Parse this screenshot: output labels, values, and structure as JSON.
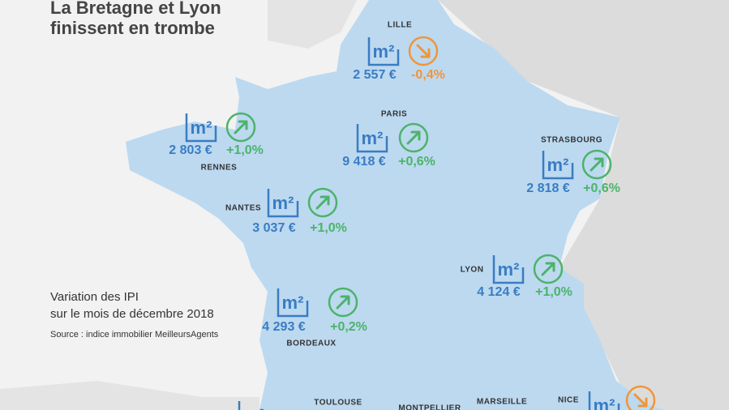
{
  "header": {
    "title_lines": [
      "La Bretagne et Lyon",
      "finissent en trombe"
    ]
  },
  "legend": {
    "lines": [
      "Variation des IPI",
      "sur le mois de décembre 2018"
    ],
    "source": "Source : indice immobilier MeilleursAgents"
  },
  "icon_label": "m²",
  "cities": [
    {
      "name": "LILLE",
      "price": {
        "value": 2557,
        "label": "2 557 €"
      },
      "change": {
        "value": -0.4,
        "label": "-0,4%"
      },
      "color": "#f0953a"
    },
    {
      "name": "PARIS",
      "price": {
        "value": 9418,
        "label": "9 418 €"
      },
      "change": {
        "value": 0.6,
        "label": "+0,6%"
      },
      "color": "#4cb36a"
    },
    {
      "name": "STRASBOURG",
      "price": {
        "value": 2818,
        "label": "2 818 €"
      },
      "change": {
        "value": 0.6,
        "label": "+0,6%"
      },
      "color": "#4cb36a"
    },
    {
      "name": "RENNES",
      "price": {
        "value": 2803,
        "label": "2 803 €"
      },
      "change": {
        "value": 1.0,
        "label": "+1,0%"
      },
      "color": "#4cb36a"
    },
    {
      "name": "NANTES",
      "price": {
        "value": 3037,
        "label": "3 037 €"
      },
      "change": {
        "value": 1.0,
        "label": "+1,0%"
      },
      "color": "#4cb36a"
    },
    {
      "name": "LYON",
      "price": {
        "value": 4124,
        "label": "4 124 €"
      },
      "change": {
        "value": 1.0,
        "label": "+1,0%"
      },
      "color": "#4cb36a"
    },
    {
      "name": "BORDEAUX",
      "price": {
        "value": 4293,
        "label": "4 293 €"
      },
      "change": {
        "value": 0.2,
        "label": "+0,2%"
      },
      "color": "#4cb36a"
    },
    {
      "name": "TOULOUSE"
    },
    {
      "name": "MONTPELLIER"
    },
    {
      "name": "MARSEILLE"
    },
    {
      "name": "NICE",
      "color": "#f0953a"
    }
  ]
}
